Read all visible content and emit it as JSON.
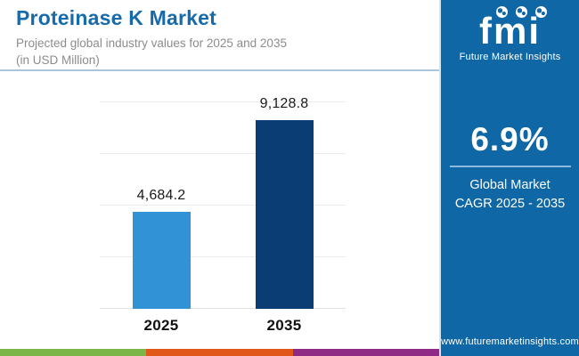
{
  "header": {
    "title": "Proteinase K Market",
    "subtitle_line1": "Projected global industry values for 2025 and 2035",
    "subtitle_line2": "(in USD Million)"
  },
  "chart_data": {
    "type": "bar",
    "title": "Proteinase K Market",
    "subtitle": "Projected global industry values for 2025 and 2035 (in USD Million)",
    "categories": [
      "2025",
      "2035"
    ],
    "values": [
      4684.2,
      9128.8
    ],
    "value_labels": [
      "4,684.2",
      "9,128.8"
    ],
    "xlabel": "",
    "ylabel": "",
    "ylim": [
      0,
      11000
    ],
    "gridline_values": [
      2500,
      5000,
      7500,
      10000
    ],
    "grid": true,
    "legend": "none",
    "bar_colors": [
      "#3292D6",
      "#093D73"
    ]
  },
  "sidebar": {
    "background_color": "#0F67A6",
    "logo": {
      "text": "fmi",
      "caption": "Future Market Insights",
      "globe_icon": "globe-icon",
      "globe_count": 3
    },
    "cagr": {
      "value": "6.9%",
      "label_line1": "Global Market",
      "label_line2": "CAGR 2025 - 2035"
    },
    "website": "www.futuremarketinsights.com"
  },
  "footer": {
    "stripe_colors": [
      "#7AB648",
      "#E1571A",
      "#8F2A85"
    ]
  },
  "colors": {
    "title_text": "#176BAA",
    "subtitle_text": "#8C8C8C",
    "header_divider": "#A9C6DC",
    "bar_2025": "#3292D6",
    "bar_2035": "#093D73"
  }
}
